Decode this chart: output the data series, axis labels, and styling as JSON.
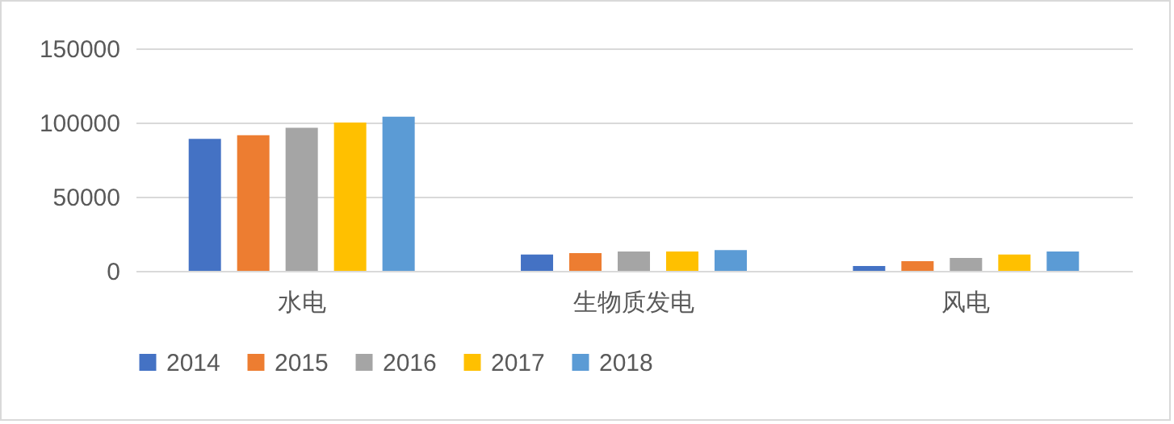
{
  "chart_data": {
    "type": "bar",
    "categories": [
      "水电",
      "生物质发电",
      "风电"
    ],
    "series": [
      {
        "name": "2014",
        "color": "#4472c4",
        "values": [
          89000,
          11000,
          3300
        ]
      },
      {
        "name": "2015",
        "color": "#ed7d31",
        "values": [
          91500,
          12000,
          6500
        ]
      },
      {
        "name": "2016",
        "color": "#a5a5a5",
        "values": [
          96500,
          13000,
          8700
        ]
      },
      {
        "name": "2017",
        "color": "#ffc000",
        "values": [
          100000,
          13000,
          11000
        ]
      },
      {
        "name": "2018",
        "color": "#5b9bd5",
        "values": [
          104000,
          14000,
          13000
        ]
      }
    ],
    "ylim": [
      0,
      150000
    ],
    "yticks": [
      0,
      50000,
      100000,
      150000
    ],
    "grid": "y",
    "legend": "bottom"
  }
}
